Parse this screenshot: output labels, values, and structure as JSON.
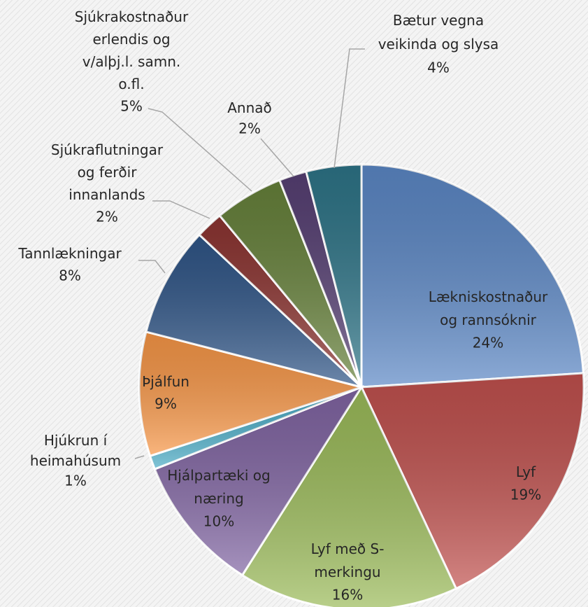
{
  "chart_data": {
    "type": "pie",
    "categories": [
      "Lækniskostnaður\nog rannsóknir",
      "Lyf",
      "Lyf með S-\nmerkingu",
      "Hjálpartæki og\nnæring",
      "Hjúkrun í\nheimahúsum",
      "Þjálfun",
      "Tannlækningar",
      "Sjúkraflutningar\nog ferðir\ninnanlands",
      "Sjúkrakostnaður\nerlendis og\nv/alþj.l. samn.\no.fl.",
      "Annað",
      "Bætur vegna\nveikinda og slysa"
    ],
    "values": [
      24,
      19,
      16,
      10,
      1,
      9,
      8,
      2,
      5,
      2,
      4
    ],
    "value_labels": [
      "24%",
      "19%",
      "16%",
      "10%",
      "1%",
      "9%",
      "8%",
      "2%",
      "5%",
      "2%",
      "4%"
    ],
    "colors": [
      "#5b87c5",
      "#c0504d",
      "#9bbb59",
      "#8064a2",
      "#4bacc6",
      "#f79646",
      "#2f5587",
      "#8c3431",
      "#66813a",
      "#563f73",
      "#2d7487"
    ]
  }
}
